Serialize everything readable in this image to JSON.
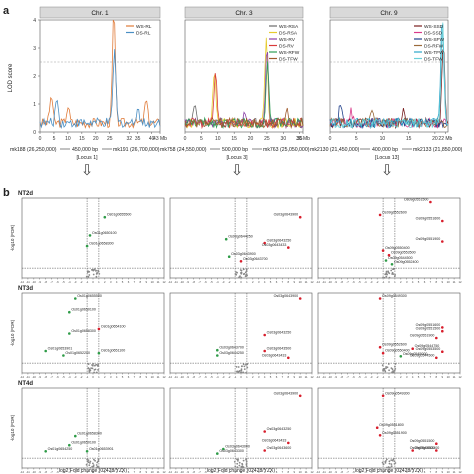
{
  "figure": {
    "panel_a_label": "a",
    "panel_b_label": "b",
    "arrow_glyph": "⇩"
  },
  "qtl": {
    "ylabel": "LOD score",
    "threshold": 2.5,
    "ylim": [
      0,
      4
    ],
    "yticks": [
      "0",
      "1",
      "2",
      "3",
      "4"
    ],
    "chromosomes": [
      {
        "title": "Chr. 1",
        "xticks": [
          "0",
          "5",
          "10",
          "15",
          "20",
          "25",
          "32",
          "35",
          "40",
          "43 Mb"
        ],
        "xtick_vals": [
          0,
          5,
          10,
          15,
          20,
          25,
          32,
          35,
          40,
          43
        ],
        "xmax": 43,
        "legend": [
          {
            "name": "WS-RL",
            "color": "#e07b39"
          },
          {
            "name": "DS-RL",
            "color": "#4a8fc4"
          }
        ],
        "peaks": [
          {
            "x": 4,
            "y": 1.0,
            "series": 0
          },
          {
            "x": 6,
            "y": 0.9,
            "series": 1
          },
          {
            "x": 10,
            "y": 0.6,
            "series": 0
          },
          {
            "x": 26.5,
            "y": 4.0,
            "series": 0
          },
          {
            "x": 26.7,
            "y": 2.6,
            "series": 1
          },
          {
            "x": 35,
            "y": 0.6,
            "series": 1
          },
          {
            "x": 38,
            "y": 0.8,
            "series": 0
          }
        ]
      },
      {
        "title": "Chr. 3",
        "xticks": [
          "0",
          "5",
          "10",
          "15",
          "20",
          "25",
          "30",
          "35",
          "36 Mb"
        ],
        "xtick_vals": [
          0,
          5,
          10,
          15,
          20,
          25,
          30,
          35,
          36
        ],
        "xmax": 36,
        "legend": [
          {
            "name": "WS-RSA",
            "color": "#6a6a6a"
          },
          {
            "name": "DS-RSA",
            "color": "#e6cc2e"
          },
          {
            "name": "WS-RV",
            "color": "#8a3fa8"
          },
          {
            "name": "DS-RV",
            "color": "#d93a3a"
          },
          {
            "name": "WS-RFW",
            "color": "#2e9e57"
          },
          {
            "name": "DS-TFW",
            "color": "#a05a2c"
          }
        ],
        "peaks": [
          {
            "x": 3,
            "y": 0.6,
            "series": 0
          },
          {
            "x": 9,
            "y": 2.0,
            "series": 1
          },
          {
            "x": 9.3,
            "y": 1.8,
            "series": 3
          },
          {
            "x": 18,
            "y": 0.4,
            "series": 2
          },
          {
            "x": 24.8,
            "y": 3.1,
            "series": 1
          },
          {
            "x": 25,
            "y": 2.7,
            "series": 2
          },
          {
            "x": 25.2,
            "y": 2.3,
            "series": 4
          },
          {
            "x": 31,
            "y": 0.5,
            "series": 5
          }
        ]
      },
      {
        "title": "Chr. 9",
        "xticks": [
          "0",
          "5",
          "10",
          "15",
          "20",
          "22 Mb"
        ],
        "xtick_vals": [
          0,
          5,
          10,
          15,
          20,
          22
        ],
        "xmax": 22.5,
        "legend": [
          {
            "name": "WS-SSD",
            "color": "#7a1f1f"
          },
          {
            "name": "DS-SSD",
            "color": "#d93a8a"
          },
          {
            "name": "WS-SFW",
            "color": "#1f3f8a"
          },
          {
            "name": "DS-RFW",
            "color": "#9a6a3a"
          },
          {
            "name": "WS-TFW",
            "color": "#2aa6c9"
          },
          {
            "name": "DS-TFW",
            "color": "#6ad0d8"
          }
        ],
        "peaks": [
          {
            "x": 2,
            "y": 0.7,
            "series": 2
          },
          {
            "x": 4,
            "y": 0.5,
            "series": 1
          },
          {
            "x": 8,
            "y": 0.6,
            "series": 3
          },
          {
            "x": 14,
            "y": 0.5,
            "series": 0
          },
          {
            "x": 21.4,
            "y": 3.9,
            "series": 4
          },
          {
            "x": 21.5,
            "y": 3.5,
            "series": 5
          },
          {
            "x": 21.6,
            "y": 3.0,
            "series": 0
          }
        ]
      }
    ]
  },
  "loci": [
    {
      "left": "mk188 (26,250,000)",
      "mid": "450,000 bp",
      "right": "mk191 (26,700,000)",
      "name": "[Locus 1]"
    },
    {
      "left": "mk758 (24,550,000)",
      "mid": "500,000 bp",
      "right": "mk763 (25,050,000)",
      "name": "[Locus 3]"
    },
    {
      "left": "mk2130 (21,450,000)",
      "mid": "400,000 bp",
      "right": "mk2133 (21,850,000)",
      "name": "[Locus 13]"
    }
  ],
  "volcano": {
    "ylabel": "-log10 (FDR)",
    "xlabel": "log2 Fold change (02428/YZX)",
    "xticks": [
      "-12",
      "-11",
      "-10",
      "-9",
      "-8",
      "-7",
      "-6",
      "-5",
      "-4",
      "-3",
      "-2",
      "-1",
      "0",
      "1",
      "2",
      "3",
      "4",
      "5",
      "6",
      "7",
      "8",
      "9",
      "10",
      "11",
      "12"
    ],
    "xlim": [
      -12,
      12
    ],
    "ylim": [
      0,
      10
    ],
    "rows": [
      {
        "label": "NT2d",
        "panels": [
          {
            "genes": [
              {
                "name": "Os01g0655500",
                "x": 2,
                "y": 8.0,
                "c": "g"
              },
              {
                "name": "Os01g0650100",
                "x": -0.5,
                "y": 5.6,
                "c": "g"
              },
              {
                "name": "Os01g0658300",
                "x": -1,
                "y": 4.2,
                "c": "g"
              }
            ]
          },
          {
            "genes": [
              {
                "name": "Os03g0643900",
                "x": 10,
                "y": 8.0,
                "c": "r"
              },
              {
                "name": "Os03g0643250",
                "x": 4,
                "y": 4.6,
                "c": "r"
              },
              {
                "name": "Os03g0643433",
                "x": 8,
                "y": 4.0,
                "c": "r"
              },
              {
                "name": "Os03g0644250",
                "x": -2.5,
                "y": 5.1,
                "c": "g"
              },
              {
                "name": "Os03g0643900",
                "x": -2,
                "y": 2.8,
                "c": "g"
              },
              {
                "name": "Os03g0643700",
                "x": 0,
                "y": 2.2,
                "c": "r"
              }
            ]
          },
          {
            "genes": [
              {
                "name": "Os09g0552600",
                "x": -1.5,
                "y": 8.3,
                "c": "r"
              },
              {
                "name": "Os09g0551500",
                "x": 7,
                "y": 10.0,
                "c": "r"
              },
              {
                "name": "Os09g0551600",
                "x": 9,
                "y": 7.5,
                "c": "r"
              },
              {
                "name": "Os09g0551900",
                "x": 9,
                "y": 4.8,
                "c": "r"
              },
              {
                "name": "Os09g0550400",
                "x": -1,
                "y": 3.6,
                "c": "r"
              },
              {
                "name": "Os09g0553500",
                "x": 0,
                "y": 3.0,
                "c": "r"
              },
              {
                "name": "Os09g0544500",
                "x": -0.5,
                "y": 2.3,
                "c": "g"
              },
              {
                "name": "Os09g0552400",
                "x": 0.5,
                "y": 1.8,
                "c": "g"
              }
            ]
          }
        ]
      },
      {
        "label": "NT3d",
        "panels": [
          {
            "genes": [
              {
                "name": "Os01g0655500",
                "x": -3,
                "y": 9.8,
                "c": "g"
              },
              {
                "name": "Os01g0650100",
                "x": -4,
                "y": 8.0,
                "c": "g"
              },
              {
                "name": "Os01g0658300",
                "x": -4,
                "y": 5.2,
                "c": "g"
              },
              {
                "name": "Os01g0654100",
                "x": 1,
                "y": 5.8,
                "c": "r"
              },
              {
                "name": "Os01g0653901",
                "x": -8,
                "y": 2.9,
                "c": "g"
              },
              {
                "name": "Os01g0652200",
                "x": -5,
                "y": 2.3,
                "c": "g"
              },
              {
                "name": "Os01g0651100",
                "x": 1,
                "y": 2.6,
                "c": "g"
              }
            ]
          },
          {
            "genes": [
              {
                "name": "Os03g0643900",
                "x": 10,
                "y": 9.8,
                "c": "r"
              },
              {
                "name": "Os03g0643250",
                "x": 4,
                "y": 5.0,
                "c": "r"
              },
              {
                "name": "Os03g0643700",
                "x": -4,
                "y": 3.0,
                "c": "g"
              },
              {
                "name": "Os03g0643500",
                "x": 4,
                "y": 2.9,
                "c": "r"
              },
              {
                "name": "Os03g0644250",
                "x": -4,
                "y": 2.3,
                "c": "g"
              },
              {
                "name": "Os03g0643433",
                "x": 8,
                "y": 2.0,
                "c": "r"
              }
            ]
          },
          {
            "genes": [
              {
                "name": "Os09g0549300",
                "x": -1.5,
                "y": 9.8,
                "c": "r"
              },
              {
                "name": "Os09g0551600",
                "x": 9,
                "y": 6.0,
                "c": "r"
              },
              {
                "name": "Os09g0551500",
                "x": 9,
                "y": 5.5,
                "c": "r"
              },
              {
                "name": "Os09g0551900",
                "x": 8,
                "y": 4.6,
                "c": "r"
              },
              {
                "name": "Os09g0552600",
                "x": -1.5,
                "y": 3.4,
                "c": "r"
              },
              {
                "name": "Os09g0550400",
                "x": -1,
                "y": 2.6,
                "c": "r"
              },
              {
                "name": "Os09g0544750",
                "x": 4,
                "y": 3.2,
                "c": "r"
              },
              {
                "name": "Os09g0553500",
                "x": 9,
                "y": 2.8,
                "c": "r"
              },
              {
                "name": "Os09g0545000",
                "x": 2,
                "y": 2.2,
                "c": "g"
              },
              {
                "name": "Os09g0544500",
                "x": 8,
                "y": 2.0,
                "c": "r"
              }
            ]
          }
        ]
      },
      {
        "label": "NT4d",
        "panels": [
          {
            "genes": [
              {
                "name": "Os01g0658300",
                "x": -3,
                "y": 4.2,
                "c": "g"
              },
              {
                "name": "Os01g0650100",
                "x": -4,
                "y": 3.0,
                "c": "g"
              },
              {
                "name": "Os01g0654250",
                "x": -8,
                "y": 2.2,
                "c": "g"
              },
              {
                "name": "Os01g0653901",
                "x": -1,
                "y": 2.2,
                "c": "g"
              }
            ]
          },
          {
            "genes": [
              {
                "name": "Os03g0643900",
                "x": 10,
                "y": 9.5,
                "c": "r"
              },
              {
                "name": "Os03g0643250",
                "x": 4,
                "y": 4.8,
                "c": "r"
              },
              {
                "name": "Os03g0643433",
                "x": 8,
                "y": 3.3,
                "c": "r"
              },
              {
                "name": "Os03g0643600",
                "x": 4,
                "y": 2.3,
                "c": "r"
              },
              {
                "name": "Os03g0643000",
                "x": -3,
                "y": 2.5,
                "c": "g"
              },
              {
                "name": "Os03g0643300",
                "x": -4,
                "y": 1.9,
                "c": "g"
              }
            ]
          },
          {
            "genes": [
              {
                "name": "Os09g0549300",
                "x": -1,
                "y": 9.5,
                "c": "r"
              },
              {
                "name": "Os09g0551800",
                "x": -2,
                "y": 5.3,
                "c": "r"
              },
              {
                "name": "Os09g0551900",
                "x": -1.5,
                "y": 4.3,
                "c": "r"
              },
              {
                "name": "Os09g0551500",
                "x": 8,
                "y": 3.2,
                "c": "r"
              },
              {
                "name": "Os09g0552400",
                "x": 4,
                "y": 2.3,
                "c": "r"
              },
              {
                "name": "Os09g0544500",
                "x": 8,
                "y": 2.3,
                "c": "r"
              }
            ]
          }
        ]
      }
    ]
  },
  "colors": {
    "up": "#d81e2c",
    "down": "#2e9b47",
    "neutral": "#888888",
    "frame": "#333333",
    "title_bg": "#d9d9d9"
  }
}
